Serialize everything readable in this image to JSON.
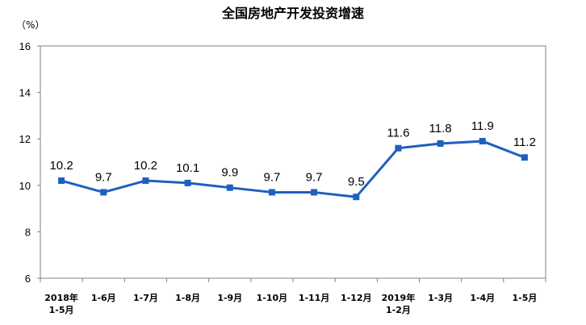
{
  "chart_data": {
    "type": "line",
    "title": "全国房地产开发投资增速",
    "unit": "（%）",
    "categories": [
      [
        "2018年",
        "1-5月"
      ],
      [
        "1-6月"
      ],
      [
        "1-7月"
      ],
      [
        "1-8月"
      ],
      [
        "1-9月"
      ],
      [
        "1-10月"
      ],
      [
        "1-11月"
      ],
      [
        "1-12月"
      ],
      [
        "2019年",
        "1-2月"
      ],
      [
        "1-3月"
      ],
      [
        "1-4月"
      ],
      [
        "1-5月"
      ]
    ],
    "values": [
      10.2,
      9.7,
      10.2,
      10.1,
      9.9,
      9.7,
      9.7,
      9.5,
      11.6,
      11.8,
      11.9,
      11.2
    ],
    "data_labels": [
      "10.2",
      "9.7",
      "10.2",
      "10.1",
      "9.9",
      "9.7",
      "9.7",
      "9.5",
      "11.6",
      "11.8",
      "11.9",
      "11.2"
    ],
    "yticks": [
      "6",
      "8",
      "10",
      "12",
      "14",
      "16"
    ],
    "ylim": [
      6,
      16
    ],
    "grid": false,
    "legend": "none",
    "line_color": "#1f5fbf",
    "marker": "square"
  }
}
